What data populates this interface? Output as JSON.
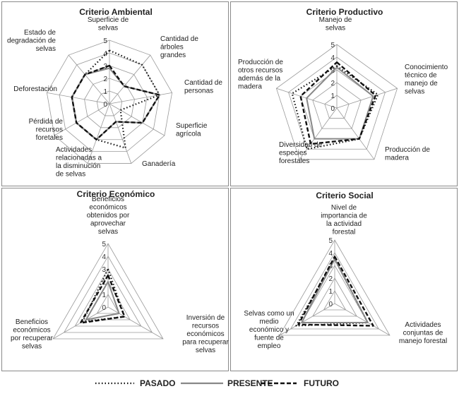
{
  "legend": {
    "pasado": "PASADO",
    "presente": "PRESENTE",
    "futuro": "FUTURO"
  },
  "chart_data": [
    {
      "type": "radar",
      "title": "Criterio Ambiental",
      "rlim": [
        0,
        5
      ],
      "ticks": [
        "0",
        "1",
        "2",
        "3",
        "4",
        "5"
      ],
      "axes": [
        [
          "Superficie de",
          "selvas"
        ],
        [
          "Cantidad de",
          "árboles",
          "grandes"
        ],
        [
          "Cantidad de",
          "personas"
        ],
        [
          "Superficie",
          "agrícola"
        ],
        [
          "Ganadería"
        ],
        [
          "Actividades",
          "relacionadas a",
          "la disminución",
          "de selvas"
        ],
        [
          "Pérdida de",
          "recursos",
          "foretales"
        ],
        [
          "Deforestación"
        ],
        [
          "Estado de",
          "degradación de",
          "selvas"
        ]
      ],
      "series": [
        {
          "name": "PASADO",
          "values": [
            4.2,
            4.0,
            4.0,
            1.0,
            3.7,
            3.0,
            3.0,
            3.0,
            3.0
          ]
        },
        {
          "name": "PRESENTE",
          "values": [
            2.8,
            1.8,
            4.0,
            3.0,
            1.5,
            3.0,
            3.0,
            3.0,
            3.0
          ]
        },
        {
          "name": "FUTURO",
          "values": [
            3.0,
            1.8,
            4.0,
            3.0,
            1.5,
            3.0,
            3.0,
            3.0,
            3.0
          ]
        }
      ]
    },
    {
      "type": "radar",
      "title": "Criterio Productivo",
      "rlim": [
        0,
        5
      ],
      "ticks": [
        "0",
        "1",
        "2",
        "3",
        "4",
        "5"
      ],
      "axes": [
        [
          "Manejo de",
          "selvas"
        ],
        [
          "Conocimiento",
          "técnico de",
          "manejo de",
          "selvas"
        ],
        [
          "Producción de",
          "madera"
        ],
        [
          "Diversidad de",
          "especies",
          "forestales"
        ],
        [
          "Producción de",
          "otros recursos",
          "además de la",
          "madera"
        ]
      ],
      "series": [
        {
          "name": "PASADO",
          "values": [
            3.3,
            3.4,
            3.0,
            4.0,
            3.7
          ]
        },
        {
          "name": "PRESENTE",
          "values": [
            3.2,
            3.0,
            3.0,
            3.0,
            2.5
          ]
        },
        {
          "name": "FUTURO",
          "values": [
            3.6,
            3.2,
            3.0,
            3.5,
            3.0
          ]
        }
      ]
    },
    {
      "type": "radar",
      "title": "Criterio Económico",
      "rlim": [
        0,
        5
      ],
      "ticks": [
        "0",
        "1",
        "2",
        "3",
        "4",
        "5"
      ],
      "axes": [
        [
          "Beneficios",
          "económicos",
          "obtenidos por",
          "aprovechar",
          "selvas"
        ],
        [
          "Inversión de",
          "recursos",
          "económicos",
          "para recuperar",
          "selvas"
        ],
        [
          "Beneficios",
          "económicos",
          "por recuperar",
          "selvas"
        ]
      ],
      "series": [
        {
          "name": "PASADO",
          "values": [
            3.0,
            1.5,
            2.3
          ]
        },
        {
          "name": "PRESENTE",
          "values": [
            2.0,
            1.0,
            2.0
          ]
        },
        {
          "name": "FUTURO",
          "values": [
            2.5,
            1.5,
            2.5
          ]
        }
      ]
    },
    {
      "type": "radar",
      "title": "Criterio Social",
      "rlim": [
        0,
        5
      ],
      "ticks": [
        "0",
        "1",
        "2",
        "3",
        "4",
        "5"
      ],
      "axes": [
        [
          "Nivel de",
          "importancia de",
          "la actividad",
          "forestal"
        ],
        [
          "Actividades",
          "conjuntas de",
          "manejo forestal"
        ],
        [
          "Selvas como un",
          "medio",
          "económico y",
          "fuente de",
          "empleo"
        ]
      ],
      "series": [
        {
          "name": "PASADO",
          "values": [
            3.5,
            3.0,
            3.5
          ]
        },
        {
          "name": "PRESENTE",
          "values": [
            3.5,
            3.0,
            3.0
          ]
        },
        {
          "name": "FUTURO",
          "values": [
            3.7,
            3.5,
            3.3
          ]
        }
      ]
    }
  ]
}
